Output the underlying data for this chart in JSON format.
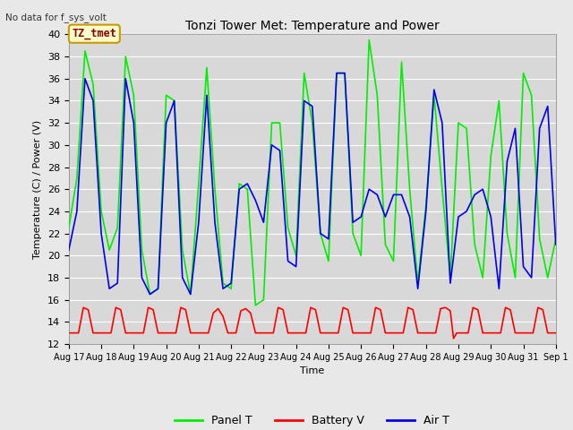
{
  "title": "Tonzi Tower Met: Temperature and Power",
  "ylabel": "Temperature (C) / Power (V)",
  "xlabel": "Time",
  "no_data_text": "No data for f_sys_volt",
  "annotation_text": "TZ_tmet",
  "ylim": [
    12,
    40
  ],
  "yticks": [
    12,
    14,
    16,
    18,
    20,
    22,
    24,
    26,
    28,
    30,
    32,
    34,
    36,
    38,
    40
  ],
  "xlim": [
    17.0,
    32.0
  ],
  "xtick_positions": [
    17,
    18,
    19,
    20,
    21,
    22,
    23,
    24,
    25,
    26,
    27,
    28,
    29,
    30,
    31,
    32
  ],
  "xtick_labels": [
    "Aug 17",
    "Aug 18",
    "Aug 19",
    "Aug 20",
    "Aug 21",
    "Aug 22",
    "Aug 23",
    "Aug 24",
    "Aug 25",
    "Aug 26",
    "Aug 27",
    "Aug 28",
    "Aug 29",
    "Aug 30",
    "Aug 31",
    "Sep 1"
  ],
  "panel_color": "#00ee00",
  "battery_color": "#ff0000",
  "air_color": "#0000ee",
  "plot_bg_color": "#d8d8d8",
  "fig_bg_color": "#e8e8e8",
  "panel_T_days": [
    17.0,
    17.25,
    17.5,
    17.75,
    18.0,
    18.25,
    18.5,
    18.75,
    19.0,
    19.25,
    19.5,
    19.75,
    20.0,
    20.25,
    20.5,
    20.75,
    21.0,
    21.25,
    21.5,
    21.75,
    22.0,
    22.25,
    22.5,
    22.75,
    23.0,
    23.25,
    23.5,
    23.75,
    24.0,
    24.25,
    24.5,
    24.75,
    25.0,
    25.25,
    25.5,
    25.75,
    26.0,
    26.25,
    26.5,
    26.75,
    27.0,
    27.25,
    27.5,
    27.75,
    28.0,
    28.25,
    28.5,
    28.75,
    29.0,
    29.25,
    29.5,
    29.75,
    30.0,
    30.25,
    30.5,
    30.75,
    31.0,
    31.25,
    31.5,
    31.75,
    32.0
  ],
  "panel_T_vals": [
    22.5,
    27.0,
    38.5,
    35.5,
    24.0,
    20.5,
    22.5,
    38.0,
    34.5,
    20.5,
    16.5,
    17.0,
    34.5,
    34.0,
    20.5,
    16.5,
    26.5,
    37.0,
    26.0,
    17.5,
    17.0,
    26.5,
    26.0,
    15.5,
    16.0,
    32.0,
    32.0,
    22.5,
    20.0,
    36.5,
    32.0,
    22.0,
    19.5,
    36.5,
    36.5,
    22.0,
    20.0,
    39.5,
    34.5,
    21.0,
    19.5,
    37.5,
    26.0,
    17.5,
    24.5,
    34.5,
    26.0,
    18.0,
    32.0,
    31.5,
    21.0,
    18.0,
    29.0,
    34.0,
    22.0,
    18.0,
    36.5,
    34.5,
    21.5,
    18.0,
    21.5
  ],
  "battery_V_days": [
    17.0,
    17.15,
    17.3,
    17.45,
    17.6,
    17.75,
    17.9,
    18.0,
    18.15,
    18.3,
    18.45,
    18.6,
    18.75,
    18.9,
    19.0,
    19.15,
    19.3,
    19.45,
    19.6,
    19.75,
    19.9,
    20.0,
    20.15,
    20.3,
    20.45,
    20.6,
    20.75,
    20.9,
    21.0,
    21.15,
    21.3,
    21.45,
    21.6,
    21.75,
    21.9,
    22.0,
    22.15,
    22.3,
    22.45,
    22.6,
    22.75,
    22.9,
    23.0,
    23.15,
    23.3,
    23.45,
    23.6,
    23.75,
    23.9,
    24.0,
    24.15,
    24.3,
    24.45,
    24.6,
    24.75,
    24.9,
    25.0,
    25.15,
    25.3,
    25.45,
    25.6,
    25.75,
    25.9,
    26.0,
    26.15,
    26.3,
    26.45,
    26.6,
    26.75,
    26.9,
    27.0,
    27.15,
    27.3,
    27.45,
    27.6,
    27.75,
    27.9,
    28.0,
    28.15,
    28.3,
    28.45,
    28.6,
    28.75,
    28.85,
    28.95,
    29.0,
    29.15,
    29.3,
    29.45,
    29.6,
    29.75,
    29.9,
    30.0,
    30.15,
    30.3,
    30.45,
    30.6,
    30.75,
    30.9,
    31.0,
    31.15,
    31.3,
    31.45,
    31.6,
    31.75,
    31.9,
    32.0
  ],
  "battery_V_vals": [
    13.0,
    13.0,
    13.0,
    15.3,
    15.1,
    13.0,
    13.0,
    13.0,
    13.0,
    13.0,
    15.3,
    15.1,
    13.0,
    13.0,
    13.0,
    13.0,
    13.0,
    15.3,
    15.1,
    13.0,
    13.0,
    13.0,
    13.0,
    13.0,
    15.3,
    15.1,
    13.0,
    13.0,
    13.0,
    13.0,
    13.0,
    14.8,
    15.2,
    14.5,
    13.0,
    13.0,
    13.0,
    15.0,
    15.2,
    14.8,
    13.0,
    13.0,
    13.0,
    13.0,
    13.0,
    15.3,
    15.1,
    13.0,
    13.0,
    13.0,
    13.0,
    13.0,
    15.3,
    15.1,
    13.0,
    13.0,
    13.0,
    13.0,
    13.0,
    15.3,
    15.1,
    13.0,
    13.0,
    13.0,
    13.0,
    13.0,
    15.3,
    15.1,
    13.0,
    13.0,
    13.0,
    13.0,
    13.0,
    15.3,
    15.1,
    13.0,
    13.0,
    13.0,
    13.0,
    13.0,
    15.2,
    15.3,
    15.0,
    12.5,
    13.0,
    13.0,
    13.0,
    13.0,
    15.3,
    15.1,
    13.0,
    13.0,
    13.0,
    13.0,
    13.0,
    15.3,
    15.1,
    13.0,
    13.0,
    13.0,
    13.0,
    13.0,
    15.3,
    15.1,
    13.0,
    13.0,
    13.0
  ],
  "air_T_days": [
    17.0,
    17.25,
    17.5,
    17.75,
    18.0,
    18.25,
    18.5,
    18.75,
    19.0,
    19.25,
    19.5,
    19.75,
    20.0,
    20.25,
    20.5,
    20.75,
    21.0,
    21.25,
    21.5,
    21.75,
    22.0,
    22.25,
    22.5,
    22.75,
    23.0,
    23.25,
    23.5,
    23.75,
    24.0,
    24.25,
    24.5,
    24.75,
    25.0,
    25.25,
    25.5,
    25.75,
    26.0,
    26.25,
    26.5,
    26.75,
    27.0,
    27.25,
    27.5,
    27.75,
    28.0,
    28.25,
    28.5,
    28.75,
    29.0,
    29.25,
    29.5,
    29.75,
    30.0,
    30.25,
    30.5,
    30.75,
    31.0,
    31.25,
    31.5,
    31.75,
    32.0
  ],
  "air_T_vals": [
    20.5,
    24.0,
    36.0,
    34.0,
    22.0,
    17.0,
    17.5,
    36.0,
    32.0,
    18.0,
    16.5,
    17.0,
    32.0,
    34.0,
    18.0,
    16.5,
    23.0,
    34.5,
    23.0,
    17.0,
    17.5,
    26.0,
    26.5,
    25.0,
    23.0,
    30.0,
    29.5,
    19.5,
    19.0,
    34.0,
    33.5,
    22.0,
    21.5,
    36.5,
    36.5,
    23.0,
    23.5,
    26.0,
    25.5,
    23.5,
    25.5,
    25.5,
    23.5,
    17.0,
    24.0,
    35.0,
    32.0,
    17.5,
    23.5,
    24.0,
    25.5,
    26.0,
    23.5,
    17.0,
    28.5,
    31.5,
    19.0,
    18.0,
    31.5,
    33.5,
    21.0
  ]
}
